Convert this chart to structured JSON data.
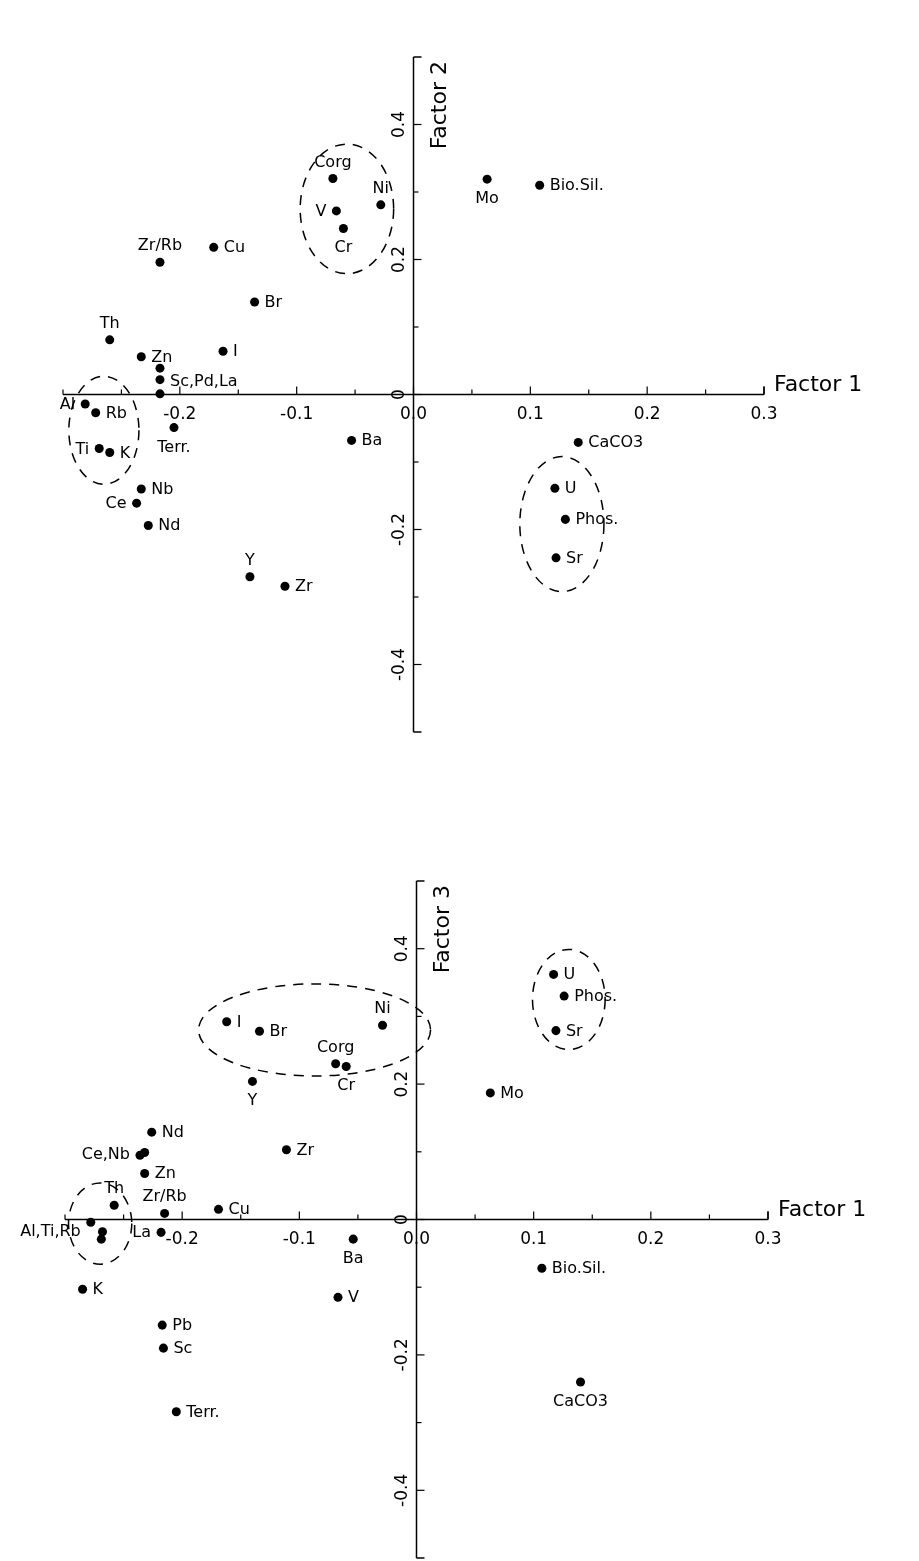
{
  "chart_data": [
    {
      "type": "scatter",
      "xlabel": "Factor 1",
      "ylabel": "Factor 2",
      "xlim": [
        -0.3,
        0.3
      ],
      "ylim": [
        -0.5,
        0.5
      ],
      "marker": "circle",
      "xticks": [
        {
          "value": -0.3,
          "label": null
        },
        {
          "value": -0.25,
          "label": null
        },
        -0.2,
        {
          "value": -0.15,
          "label": null
        },
        -0.1,
        {
          "value": -0.05,
          "label": null
        },
        {
          "value": 0,
          "label": "0.0"
        },
        {
          "value": 0.05,
          "label": null
        },
        0.1,
        {
          "value": 0.15,
          "label": null
        },
        0.2,
        {
          "value": 0.25,
          "label": null
        },
        0.3
      ],
      "yticks": [
        -0.4,
        {
          "value": -0.3,
          "label": null
        },
        -0.2,
        {
          "value": -0.1,
          "label": null
        },
        0,
        {
          "value": 0.1,
          "label": null
        },
        0.2,
        {
          "value": 0.3,
          "label": null
        },
        0.4
      ],
      "series": [
        {
          "name": "Corg",
          "color": "#000000",
          "x": [
            -0.069
          ],
          "values": [
            0.32
          ]
        },
        {
          "name": "Ni",
          "color": "#000000",
          "x": [
            -0.028
          ],
          "values": [
            0.281
          ]
        },
        {
          "name": "V",
          "color": "#000000",
          "x": [
            -0.066
          ],
          "values": [
            0.272
          ]
        },
        {
          "name": "Cr",
          "color": "#000000",
          "x": [
            -0.06
          ],
          "values": [
            0.246
          ]
        },
        {
          "name": "Mo",
          "color": "#000000",
          "x": [
            0.063
          ],
          "values": [
            0.319
          ]
        },
        {
          "name": "Bio.Sil.",
          "color": "#000000",
          "x": [
            0.108
          ],
          "values": [
            0.31
          ]
        },
        {
          "name": "Cu",
          "color": "#000000",
          "x": [
            -0.171
          ],
          "values": [
            0.218
          ]
        },
        {
          "name": "Zr/Rb",
          "color": "#000000",
          "x": [
            -0.217
          ],
          "values": [
            0.196
          ]
        },
        {
          "name": "Br",
          "color": "#000000",
          "x": [
            -0.136
          ],
          "values": [
            0.137
          ]
        },
        {
          "name": "Th",
          "color": "#000000",
          "x": [
            -0.26
          ],
          "values": [
            0.081
          ]
        },
        {
          "name": "Zn",
          "color": "#000000",
          "x": [
            -0.233
          ],
          "values": [
            0.056
          ]
        },
        {
          "name": "I",
          "color": "#000000",
          "x": [
            -0.163
          ],
          "values": [
            0.064
          ]
        },
        {
          "name": "Sc,Pd,La",
          "color": "#000000",
          "x": [
            -0.217,
            -0.217,
            -0.217
          ],
          "values": [
            0.039,
            0.022,
            0.001
          ]
        },
        {
          "name": "Al",
          "color": "#000000",
          "x": [
            -0.281
          ],
          "values": [
            -0.014
          ]
        },
        {
          "name": "Rb",
          "color": "#000000",
          "x": [
            -0.272
          ],
          "values": [
            -0.027
          ]
        },
        {
          "name": "Terr.",
          "color": "#000000",
          "x": [
            -0.205
          ],
          "values": [
            -0.049
          ]
        },
        {
          "name": "Ti",
          "color": "#000000",
          "x": [
            -0.269
          ],
          "values": [
            -0.08
          ]
        },
        {
          "name": "K",
          "color": "#000000",
          "x": [
            -0.26
          ],
          "values": [
            -0.086
          ]
        },
        {
          "name": "Ba",
          "color": "#000000",
          "x": [
            -0.053
          ],
          "values": [
            -0.068
          ]
        },
        {
          "name": "CaCO3",
          "color": "#000000",
          "x": [
            0.141
          ],
          "values": [
            -0.071
          ]
        },
        {
          "name": "U",
          "color": "#000000",
          "x": [
            0.121
          ],
          "values": [
            -0.139
          ]
        },
        {
          "name": "Phos.",
          "color": "#000000",
          "x": [
            0.13
          ],
          "values": [
            -0.185
          ]
        },
        {
          "name": "Sr",
          "color": "#000000",
          "x": [
            0.122
          ],
          "values": [
            -0.242
          ]
        },
        {
          "name": "Nb",
          "color": "#000000",
          "x": [
            -0.233
          ],
          "values": [
            -0.14
          ]
        },
        {
          "name": "Ce",
          "color": "#000000",
          "x": [
            -0.237
          ],
          "values": [
            -0.161
          ]
        },
        {
          "name": "Nd",
          "color": "#000000",
          "x": [
            -0.227
          ],
          "values": [
            -0.194
          ]
        },
        {
          "name": "Y",
          "color": "#000000",
          "x": [
            -0.14
          ],
          "values": [
            -0.27
          ]
        },
        {
          "name": "Zr",
          "color": "#000000",
          "x": [
            -0.11
          ],
          "values": [
            -0.284
          ]
        }
      ]
    },
    {
      "type": "scatter",
      "xlabel": "Factor 1",
      "ylabel": "Factor 3",
      "xlim": [
        -0.3,
        0.3
      ],
      "ylim": [
        -0.5,
        0.5
      ],
      "marker": "circle",
      "xticks": [
        {
          "value": -0.3,
          "label": null
        },
        {
          "value": -0.25,
          "label": null
        },
        -0.2,
        {
          "value": -0.15,
          "label": null
        },
        -0.1,
        {
          "value": -0.05,
          "label": null
        },
        {
          "value": 0,
          "label": "0.0"
        },
        {
          "value": 0.05,
          "label": null
        },
        0.1,
        {
          "value": 0.15,
          "label": null
        },
        0.2,
        {
          "value": 0.25,
          "label": null
        },
        0.3
      ],
      "yticks": [
        -0.4,
        {
          "value": -0.3,
          "label": null
        },
        -0.2,
        {
          "value": -0.1,
          "label": null
        },
        0,
        {
          "value": 0.1,
          "label": null
        },
        0.2,
        {
          "value": 0.3,
          "label": null
        },
        0.4
      ],
      "series": [
        {
          "name": "U",
          "color": "#000000",
          "x": [
            0.117
          ],
          "values": [
            0.362
          ]
        },
        {
          "name": "Phos.",
          "color": "#000000",
          "x": [
            0.126
          ],
          "values": [
            0.33
          ]
        },
        {
          "name": "Sr",
          "color": "#000000",
          "x": [
            0.119
          ],
          "values": [
            0.279
          ]
        },
        {
          "name": "I",
          "color": "#000000",
          "x": [
            -0.162
          ],
          "values": [
            0.292
          ]
        },
        {
          "name": "Br",
          "color": "#000000",
          "x": [
            -0.134
          ],
          "values": [
            0.278
          ]
        },
        {
          "name": "Ni",
          "color": "#000000",
          "x": [
            -0.029
          ],
          "values": [
            0.287
          ]
        },
        {
          "name": "Corg",
          "color": "#000000",
          "x": [
            -0.069
          ],
          "values": [
            0.23
          ]
        },
        {
          "name": "Cr",
          "color": "#000000",
          "x": [
            -0.06
          ],
          "values": [
            0.226
          ]
        },
        {
          "name": "Y",
          "color": "#000000",
          "x": [
            -0.14
          ],
          "values": [
            0.204
          ]
        },
        {
          "name": "Mo",
          "color": "#000000",
          "x": [
            0.063
          ],
          "values": [
            0.187
          ]
        },
        {
          "name": "Nd",
          "color": "#000000",
          "x": [
            -0.226
          ],
          "values": [
            0.129
          ]
        },
        {
          "name": "Zr",
          "color": "#000000",
          "x": [
            -0.111
          ],
          "values": [
            0.103
          ]
        },
        {
          "name": "Ce,Nb",
          "color": "#000000",
          "x": [
            -0.236,
            -0.232
          ],
          "values": [
            0.095,
            0.099
          ]
        },
        {
          "name": "Zn",
          "color": "#000000",
          "x": [
            -0.232
          ],
          "values": [
            0.068
          ]
        },
        {
          "name": "Th",
          "color": "#000000",
          "x": [
            -0.258
          ],
          "values": [
            0.021
          ]
        },
        {
          "name": "Zr/Rb",
          "color": "#000000",
          "x": [
            -0.215
          ],
          "values": [
            0.009
          ]
        },
        {
          "name": "Cu",
          "color": "#000000",
          "x": [
            -0.169
          ],
          "values": [
            0.015
          ]
        },
        {
          "name": "Al,Ti,Rb",
          "color": "#000000",
          "x": [
            -0.278,
            -0.268,
            -0.269
          ],
          "values": [
            -0.004,
            -0.018,
            -0.029
          ]
        },
        {
          "name": "La",
          "color": "#000000",
          "x": [
            -0.218
          ],
          "values": [
            -0.019
          ]
        },
        {
          "name": "Ba",
          "color": "#000000",
          "x": [
            -0.054
          ],
          "values": [
            -0.029
          ]
        },
        {
          "name": "Bio.Sil.",
          "color": "#000000",
          "x": [
            0.107
          ],
          "values": [
            -0.072
          ]
        },
        {
          "name": "K",
          "color": "#000000",
          "x": [
            -0.285
          ],
          "values": [
            -0.103
          ]
        },
        {
          "name": "V",
          "color": "#000000",
          "x": [
            -0.067
          ],
          "values": [
            -0.115
          ]
        },
        {
          "name": "Pb",
          "color": "#000000",
          "x": [
            -0.217
          ],
          "values": [
            -0.156
          ]
        },
        {
          "name": "Sc",
          "color": "#000000",
          "x": [
            -0.216
          ],
          "values": [
            -0.19
          ]
        },
        {
          "name": "CaCO3",
          "color": "#000000",
          "x": [
            0.14
          ],
          "values": [
            -0.24
          ]
        },
        {
          "name": "Terr.",
          "color": "#000000",
          "x": [
            -0.205
          ],
          "values": [
            -0.284
          ]
        }
      ]
    }
  ]
}
